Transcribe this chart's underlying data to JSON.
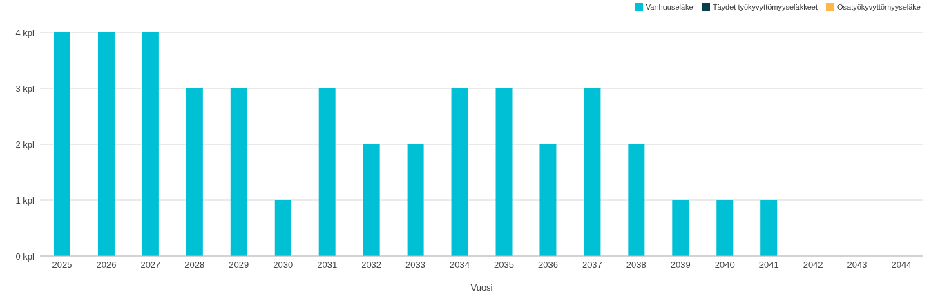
{
  "chart_data": {
    "type": "bar",
    "xlabel": "Vuosi",
    "categories": [
      "2025",
      "2026",
      "2027",
      "2028",
      "2029",
      "2030",
      "2031",
      "2032",
      "2033",
      "2034",
      "2035",
      "2036",
      "2037",
      "2038",
      "2039",
      "2040",
      "2041",
      "2042",
      "2043",
      "2044"
    ],
    "series": [
      {
        "name": "Vanhuuseläke",
        "color": "#00c0d6",
        "values": [
          4,
          4,
          4,
          3,
          3,
          1,
          3,
          2,
          2,
          3,
          3,
          2,
          3,
          2,
          1,
          1,
          1,
          0,
          0,
          0
        ]
      },
      {
        "name": "Täydet työkyvyttömyyseläkkeet",
        "color": "#0a3d4d",
        "values": [
          0,
          0,
          0,
          0,
          0,
          0,
          0,
          0,
          0,
          0,
          0,
          0,
          0,
          0,
          0,
          0,
          0,
          0,
          0,
          0
        ]
      },
      {
        "name": "Osatyökyvyttömyyseläke",
        "color": "#ffb74d",
        "values": [
          0,
          0,
          0,
          0,
          0,
          0,
          0,
          0,
          0,
          0,
          0,
          0,
          0,
          0,
          0,
          0,
          0,
          0,
          0,
          0
        ]
      }
    ],
    "stacked": true,
    "ylim": [
      0,
      4
    ],
    "yticks": [
      {
        "value": 0,
        "label": "0 kpl"
      },
      {
        "value": 1,
        "label": "1 kpl"
      },
      {
        "value": 2,
        "label": "2 kpl"
      },
      {
        "value": 3,
        "label": "3 kpl"
      },
      {
        "value": 4,
        "label": "4 kpl"
      }
    ],
    "grid": "y",
    "legend": "top right"
  }
}
